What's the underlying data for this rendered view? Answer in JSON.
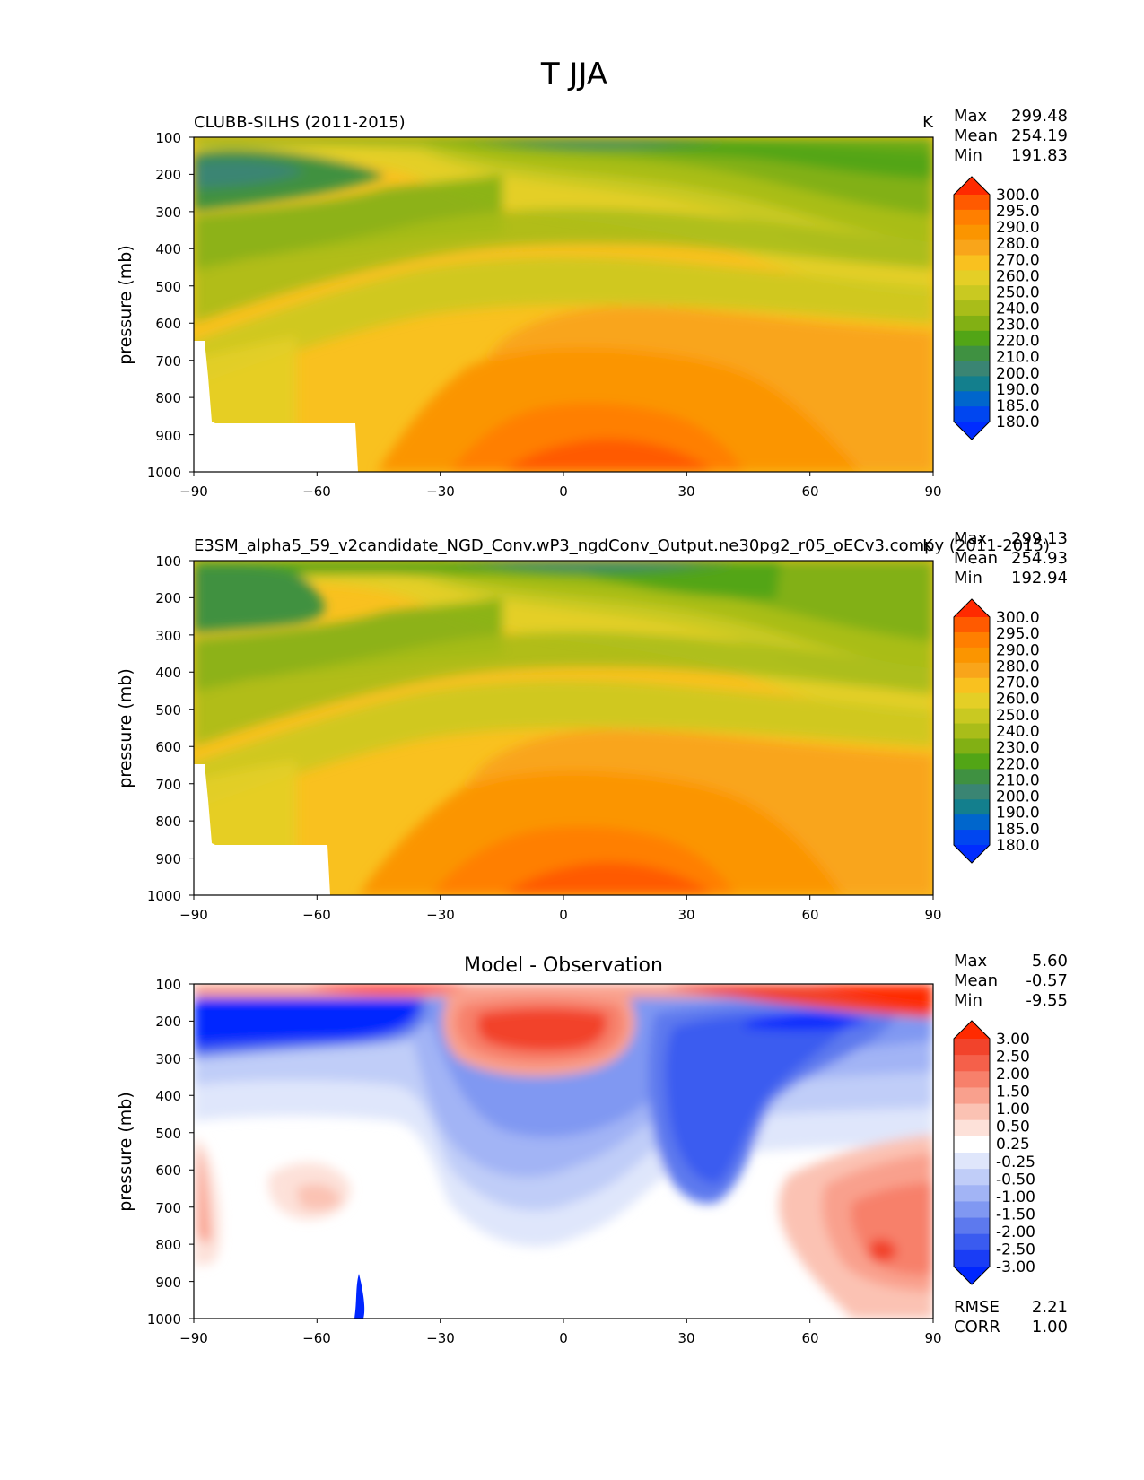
{
  "figure_title": "T JJA",
  "chart_data": [
    {
      "type": "contour",
      "panel": "test",
      "title": "CLUBB-SILHS (2011-2015)",
      "units": "K",
      "ylabel": "pressure (mb)",
      "xlabel": "",
      "xlim": [
        -90,
        90
      ],
      "ylim": [
        1000,
        100
      ],
      "xticks": [
        "−90",
        "−60",
        "−30",
        "0",
        "30",
        "60",
        "90"
      ],
      "yticks": [
        "100",
        "200",
        "300",
        "400",
        "500",
        "600",
        "700",
        "800",
        "900",
        "1000"
      ],
      "stats": [
        {
          "label": "Max",
          "value": "299.48"
        },
        {
          "label": "Mean",
          "value": "254.19"
        },
        {
          "label": "Min",
          "value": "191.83"
        }
      ],
      "colorbar_levels": [
        "300.0",
        "295.0",
        "290.0",
        "280.0",
        "270.0",
        "260.0",
        "250.0",
        "240.0",
        "230.0",
        "220.0",
        "210.0",
        "200.0",
        "190.0",
        "185.0",
        "180.0"
      ],
      "colorbar_colors": [
        "#ff2a00",
        "#ff5a00",
        "#ff7f00",
        "#fb9500",
        "#f9a51a",
        "#f9c11f",
        "#e4cf26",
        "#c9c921",
        "#a9bd19",
        "#82b014",
        "#52a516",
        "#3f9141",
        "#3a8573",
        "#137f8d",
        "#0066cc",
        "#0046f0",
        "#002cff"
      ]
    },
    {
      "type": "contour",
      "panel": "reference",
      "title": "E3SM_alpha5_59_v2candidate_NGD_Conv.wP3_ngdConv_Output.ne30pg2_r05_oECv3.compy (2011-2015)",
      "units": "K",
      "ylabel": "pressure (mb)",
      "xlabel": "",
      "xlim": [
        -90,
        90
      ],
      "ylim": [
        1000,
        100
      ],
      "xticks": [
        "−90",
        "−60",
        "−30",
        "0",
        "30",
        "60",
        "90"
      ],
      "yticks": [
        "100",
        "200",
        "300",
        "400",
        "500",
        "600",
        "700",
        "800",
        "900",
        "1000"
      ],
      "stats": [
        {
          "label": "Max",
          "value": "299.13"
        },
        {
          "label": "Mean",
          "value": "254.93"
        },
        {
          "label": "Min",
          "value": "192.94"
        }
      ],
      "colorbar_levels": [
        "300.0",
        "295.0",
        "290.0",
        "280.0",
        "270.0",
        "260.0",
        "250.0",
        "240.0",
        "230.0",
        "220.0",
        "210.0",
        "200.0",
        "190.0",
        "185.0",
        "180.0"
      ],
      "colorbar_colors": [
        "#ff2a00",
        "#ff5a00",
        "#ff7f00",
        "#fb9500",
        "#f9a51a",
        "#f9c11f",
        "#e4cf26",
        "#c9c921",
        "#a9bd19",
        "#82b014",
        "#52a516",
        "#3f9141",
        "#3a8573",
        "#137f8d",
        "#0066cc",
        "#0046f0",
        "#002cff"
      ]
    },
    {
      "type": "contour",
      "panel": "difference",
      "title": "Model - Observation",
      "units": "",
      "ylabel": "pressure (mb)",
      "xlabel": "",
      "xlim": [
        -90,
        90
      ],
      "ylim": [
        1000,
        100
      ],
      "xticks": [
        "−90",
        "−60",
        "−30",
        "0",
        "30",
        "60",
        "90"
      ],
      "yticks": [
        "100",
        "200",
        "300",
        "400",
        "500",
        "600",
        "700",
        "800",
        "900",
        "1000"
      ],
      "stats": [
        {
          "label": "Max",
          "value": "5.60"
        },
        {
          "label": "Mean",
          "value": "-0.57"
        },
        {
          "label": "Min",
          "value": "-9.55"
        }
      ],
      "extra_stats": [
        {
          "label": "RMSE",
          "value": "2.21"
        },
        {
          "label": "CORR",
          "value": "1.00"
        }
      ],
      "colorbar_levels": [
        "3.00",
        "2.50",
        "2.00",
        "1.50",
        "1.00",
        "0.50",
        "0.25",
        "-0.25",
        "-0.50",
        "-1.00",
        "-1.50",
        "-2.00",
        "-2.50",
        "-3.00"
      ],
      "colorbar_colors": [
        "#ff2a00",
        "#f2432b",
        "#f5604a",
        "#f7806b",
        "#f9a08d",
        "#fbc2b3",
        "#fde1d9",
        "#ffffff",
        "#dfe6fb",
        "#c0cdf8",
        "#a2b4f5",
        "#8098f2",
        "#5d79ee",
        "#3a5bf0",
        "#1a3df5",
        "#0026ff"
      ]
    }
  ]
}
